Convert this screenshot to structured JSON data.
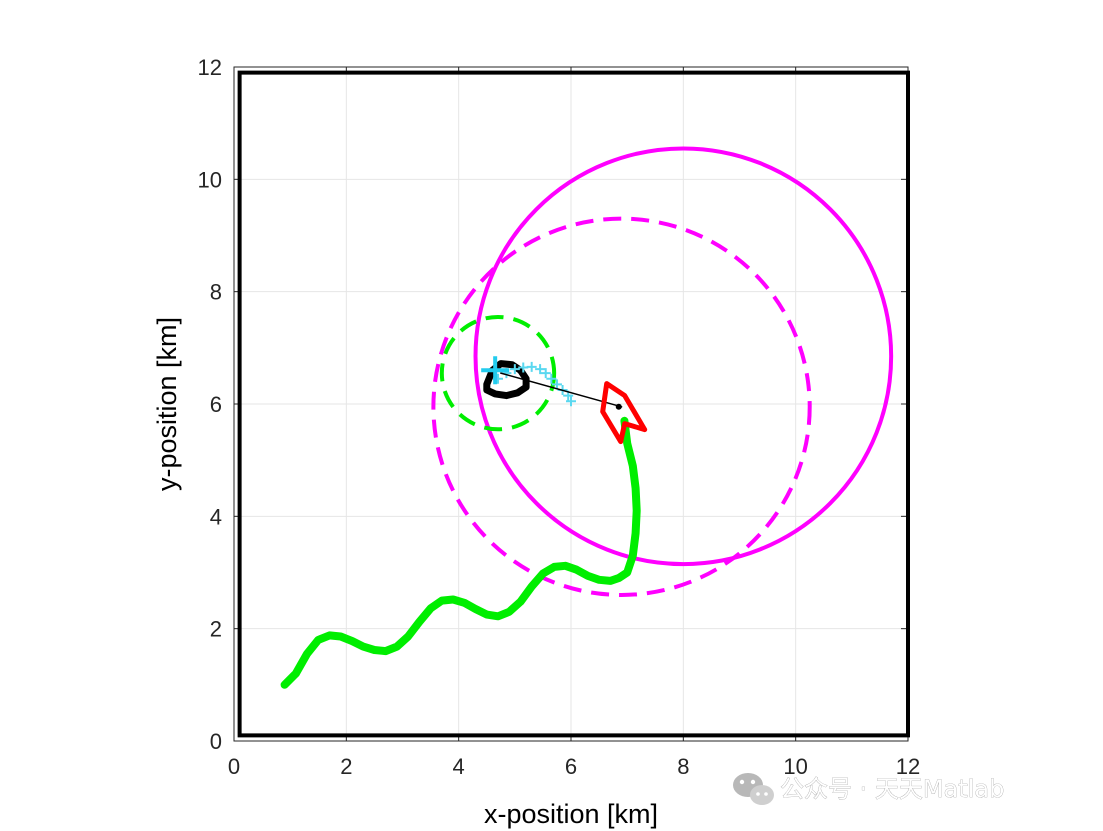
{
  "chart_data": {
    "type": "line",
    "title": "",
    "xlabel": "x-position [km]",
    "ylabel": "y-position [km]",
    "xlim": [
      0,
      12
    ],
    "ylim": [
      0,
      12
    ],
    "xticks": [
      0,
      2,
      4,
      6,
      8,
      10,
      12
    ],
    "yticks": [
      0,
      2,
      4,
      6,
      8,
      10,
      12
    ],
    "xtick_labels": [
      "0",
      "2",
      "4",
      "6",
      "8",
      "10",
      "12"
    ],
    "ytick_labels": [
      "0",
      "2",
      "4",
      "6",
      "8",
      "10",
      "12"
    ],
    "grid": true,
    "boundary_box": {
      "x0": 0.1,
      "y0": 0.1,
      "x1": 12.0,
      "y1": 11.9,
      "color": "#000000"
    },
    "series": [
      {
        "name": "target-trajectory",
        "color": "#00ee00",
        "style": "solid",
        "x": [
          0.9,
          1.1,
          1.3,
          1.5,
          1.7,
          1.9,
          2.1,
          2.3,
          2.5,
          2.7,
          2.9,
          3.1,
          3.3,
          3.5,
          3.7,
          3.9,
          4.1,
          4.3,
          4.5,
          4.7,
          4.9,
          5.1,
          5.3,
          5.5,
          5.7,
          5.9,
          6.1,
          6.3,
          6.5,
          6.7,
          6.85,
          7.0,
          7.1,
          7.15,
          7.17,
          7.15,
          7.1,
          7.0,
          6.95
        ],
        "y": [
          1.0,
          1.2,
          1.55,
          1.8,
          1.88,
          1.86,
          1.78,
          1.68,
          1.62,
          1.6,
          1.68,
          1.86,
          2.12,
          2.36,
          2.5,
          2.52,
          2.46,
          2.35,
          2.25,
          2.22,
          2.3,
          2.48,
          2.75,
          2.98,
          3.1,
          3.12,
          3.05,
          2.94,
          2.87,
          2.85,
          2.9,
          3.0,
          3.3,
          3.7,
          4.1,
          4.5,
          4.9,
          5.3,
          5.7
        ]
      },
      {
        "name": "observer-trajectory",
        "color": "#000000",
        "style": "solid",
        "x": [
          4.5,
          4.6,
          4.75,
          4.95,
          5.1,
          5.2,
          5.2,
          5.05,
          4.85,
          4.65,
          4.5,
          4.5
        ],
        "y": [
          6.35,
          6.6,
          6.72,
          6.7,
          6.6,
          6.45,
          6.3,
          6.2,
          6.15,
          6.18,
          6.25,
          6.35
        ]
      },
      {
        "name": "estimate-samples",
        "color": "#5ad8f0",
        "style": "scatter",
        "x": [
          4.7,
          4.85,
          5.0,
          5.15,
          5.3,
          5.45,
          5.55,
          5.65,
          5.75,
          5.85,
          5.95,
          6.0
        ],
        "y": [
          6.45,
          6.55,
          6.62,
          6.65,
          6.66,
          6.62,
          6.55,
          6.45,
          6.35,
          6.25,
          6.15,
          6.05
        ]
      },
      {
        "name": "bearing-line",
        "color": "#000000",
        "style": "solid",
        "x": [
          4.75,
          6.9
        ],
        "y": [
          6.55,
          5.95
        ]
      }
    ],
    "circles": [
      {
        "name": "large-solid-circle",
        "color": "#ff00ff",
        "style": "solid",
        "cx": 8.0,
        "cy": 6.85,
        "r": 3.7
      },
      {
        "name": "large-dashed-circle",
        "color": "#ff00ff",
        "style": "dashed",
        "cx": 6.9,
        "cy": 5.95,
        "r": 3.35
      },
      {
        "name": "small-dashed-circle",
        "color": "#00ee00",
        "style": "dashed",
        "cx": 4.7,
        "cy": 6.55,
        "r": 1.0
      }
    ],
    "markers": [
      {
        "name": "observer-marker-cross",
        "color": "#22ccee",
        "x": 4.65,
        "y": 6.6
      },
      {
        "name": "target-marker-pointer",
        "color": "#ff0000",
        "x": 6.85,
        "y": 5.9
      },
      {
        "name": "target-marker-dot",
        "color": "#000000",
        "x": 6.85,
        "y": 5.95
      }
    ],
    "colors": {
      "axes": "#262626",
      "grid": "#e6e6e6",
      "magenta": "#ff00ff",
      "green": "#00ee00",
      "red": "#ff0000",
      "cyan": "#5ad8f0"
    }
  },
  "watermark": {
    "text": "公众号 · 天天Matlab",
    "icon": "wechat-icon"
  }
}
